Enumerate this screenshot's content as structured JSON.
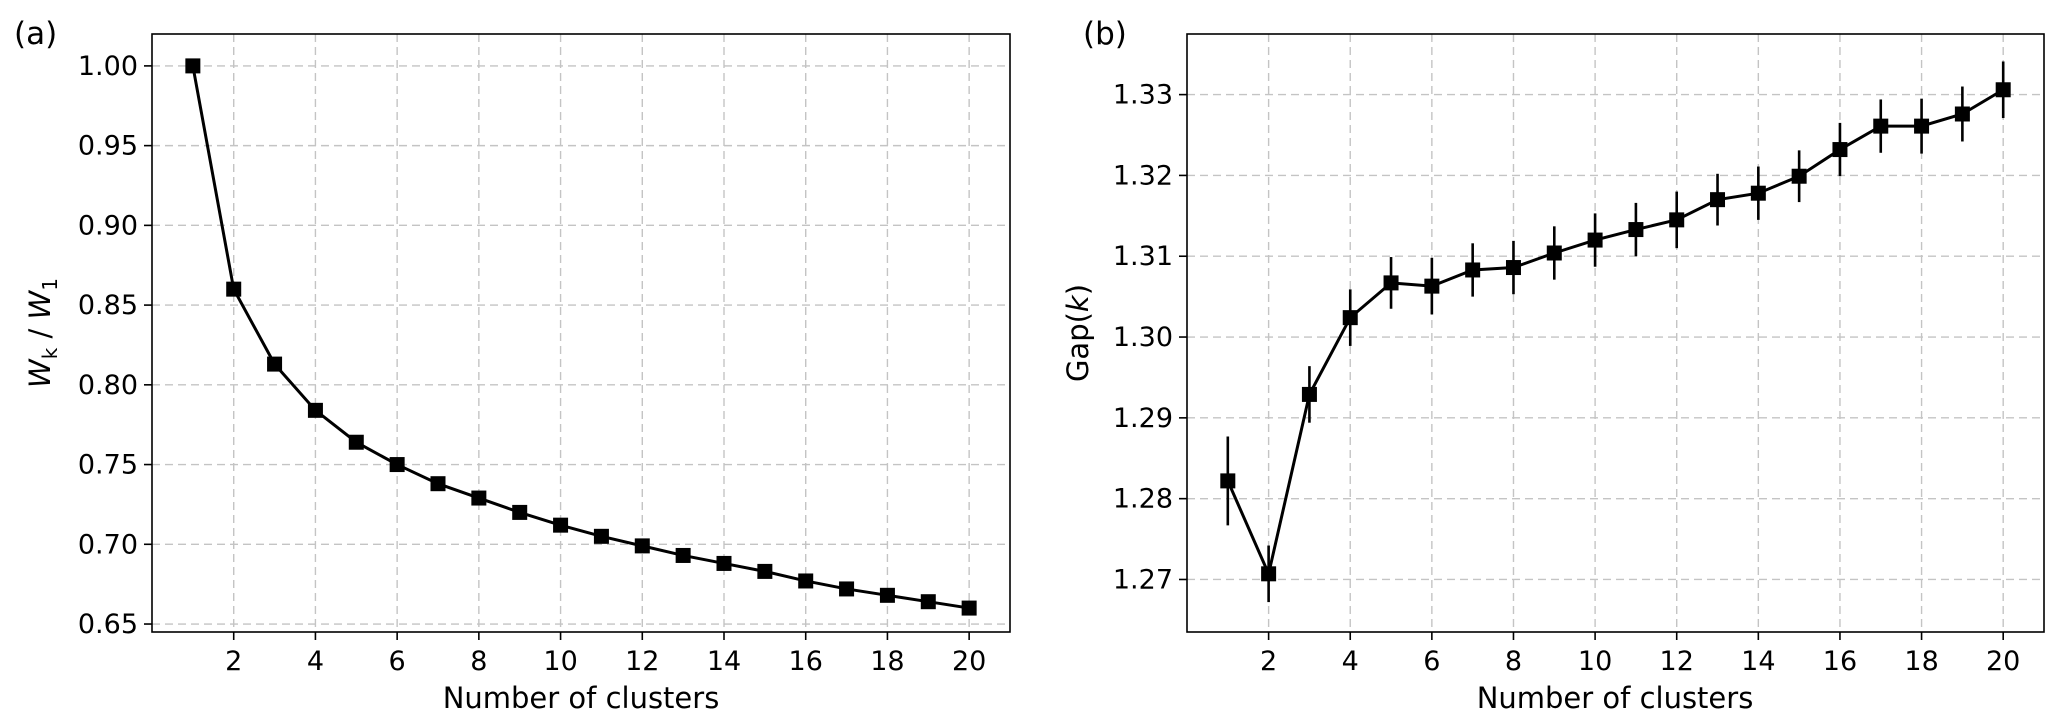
{
  "chart_data": [
    {
      "type": "line",
      "panel_label": "(a)",
      "xlabel": "Number of clusters",
      "ylabel_base": "W",
      "ylabel_sub_num": "k",
      "ylabel_slash": " / ",
      "ylabel_sub_den": "1",
      "xlim": [
        0,
        21
      ],
      "ylim": [
        0.645,
        1.02
      ],
      "xticks": [
        2,
        4,
        6,
        8,
        10,
        12,
        14,
        16,
        18,
        20
      ],
      "xtick_labels": [
        "2",
        "4",
        "6",
        "8",
        "10",
        "12",
        "14",
        "16",
        "18",
        "20"
      ],
      "yticks": [
        0.65,
        0.7,
        0.75,
        0.8,
        0.85,
        0.9,
        0.95,
        1.0
      ],
      "ytick_labels": [
        "0.65",
        "0.70",
        "0.75",
        "0.80",
        "0.85",
        "0.90",
        "0.95",
        "1.00"
      ],
      "grid": true,
      "marker": "square",
      "color": "#000000",
      "series": [
        {
          "x": [
            1,
            2,
            3,
            4,
            5,
            6,
            7,
            8,
            9,
            10,
            11,
            12,
            13,
            14,
            15,
            16,
            17,
            18,
            19,
            20
          ],
          "y": [
            1.0,
            0.86,
            0.813,
            0.784,
            0.764,
            0.75,
            0.738,
            0.729,
            0.72,
            0.712,
            0.705,
            0.699,
            0.693,
            0.688,
            0.683,
            0.677,
            0.672,
            0.668,
            0.664,
            0.66
          ]
        }
      ]
    },
    {
      "type": "line",
      "panel_label": "(b)",
      "xlabel": "Number of clusters",
      "ylabel_prefix": "Gap(",
      "ylabel_var": "k",
      "ylabel_suffix": ")",
      "xlim": [
        0,
        21
      ],
      "ylim": [
        1.2635,
        1.3375
      ],
      "xticks": [
        2,
        4,
        6,
        8,
        10,
        12,
        14,
        16,
        18,
        20
      ],
      "xtick_labels": [
        "2",
        "4",
        "6",
        "8",
        "10",
        "12",
        "14",
        "16",
        "18",
        "20"
      ],
      "yticks": [
        1.27,
        1.28,
        1.29,
        1.3,
        1.31,
        1.32,
        1.33
      ],
      "ytick_labels": [
        "1.27",
        "1.28",
        "1.29",
        "1.30",
        "1.31",
        "1.32",
        "1.33"
      ],
      "grid": true,
      "marker": "square",
      "color": "#000000",
      "series": [
        {
          "x": [
            1,
            2,
            3,
            4,
            5,
            6,
            7,
            8,
            9,
            10,
            11,
            12,
            13,
            14,
            15,
            16,
            17,
            18,
            19,
            20
          ],
          "y": [
            1.2822,
            1.2707,
            1.2929,
            1.3024,
            1.3067,
            1.3063,
            1.3083,
            1.3086,
            1.3104,
            1.312,
            1.3133,
            1.3145,
            1.317,
            1.3178,
            1.3199,
            1.3232,
            1.3261,
            1.3261,
            1.3276,
            1.3306
          ],
          "error": [
            0.0055,
            0.0035,
            0.0035,
            0.0035,
            0.0032,
            0.0035,
            0.0033,
            0.0033,
            0.0033,
            0.0033,
            0.0033,
            0.0035,
            0.0032,
            0.0033,
            0.0032,
            0.0033,
            0.0033,
            0.0034,
            0.0034,
            0.0035
          ]
        }
      ]
    }
  ]
}
